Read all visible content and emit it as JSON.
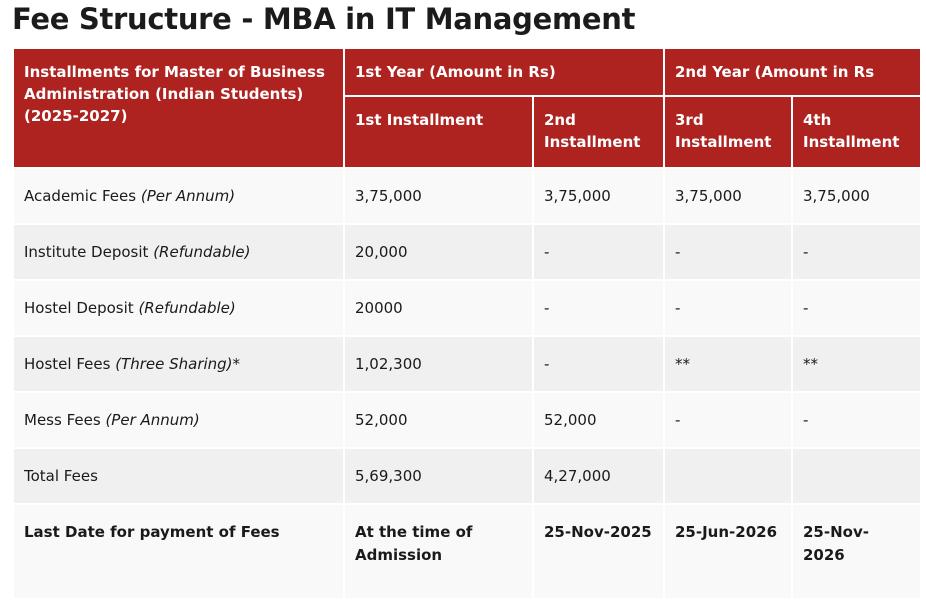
{
  "title": "Fee Structure - MBA in IT Management",
  "header": {
    "corner": "Installments for Master of Business Administration (Indian Students) (2025-2027)",
    "year1": "1st Year (Amount in Rs)",
    "year2": "2nd Year (Amount in Rs",
    "installments": [
      "1st Installment",
      "2nd Installment",
      "3rd Installment",
      "4th Installment"
    ]
  },
  "rows": [
    {
      "label": "Academic Fees",
      "note": "(Per Annum)",
      "values": [
        "3,75,000",
        "3,75,000",
        "3,75,000",
        "3,75,000"
      ]
    },
    {
      "label": "Institute Deposit",
      "note": "(Refundable)",
      "values": [
        "20,000",
        "-",
        "-",
        "-"
      ]
    },
    {
      "label": "Hostel Deposit",
      "note": "(Refundable)",
      "values": [
        "20000",
        "-",
        "-",
        "-"
      ]
    },
    {
      "label": "Hostel Fees",
      "note": "(Three Sharing)*",
      "values": [
        "1,02,300",
        "-",
        "**",
        "**"
      ]
    },
    {
      "label": "Mess Fees",
      "note": "(Per Annum)",
      "values": [
        "52,000",
        "52,000",
        "-",
        "-"
      ]
    },
    {
      "label": "Total Fees",
      "note": "",
      "values": [
        "5,69,300",
        "4,27,000",
        "",
        ""
      ]
    }
  ],
  "last_row": {
    "label": "Last Date for payment of Fees",
    "values": [
      "At the time of Admission",
      "25-Nov-2025",
      "25-Jun-2026",
      "25-Nov-2026"
    ]
  }
}
